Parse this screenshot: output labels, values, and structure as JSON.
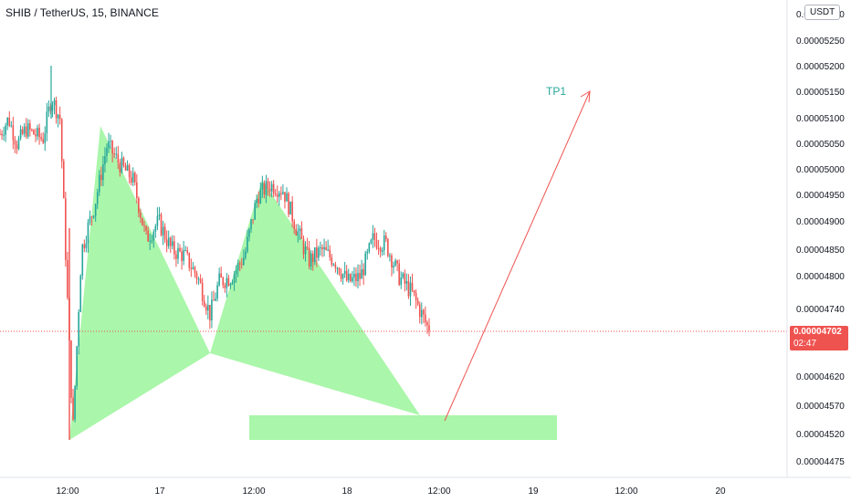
{
  "header": {
    "title": "SHIB / TetherUS, 15, BINANCE",
    "currency": "USDT"
  },
  "price_tag": {
    "price": "0.00004702",
    "countdown": "02:47"
  },
  "colors": {
    "up": "#26a69a",
    "down": "#ef5350",
    "pattern": "#a5f5a5",
    "arrow": "#ef5350",
    "target_label": "#26a69a"
  },
  "chart_data": {
    "type": "candlestick",
    "symbol": "SHIB / TetherUS",
    "interval": "15",
    "exchange": "BINANCE",
    "y_ticks": [
      "0.00005300",
      "0.00005250",
      "0.00005200",
      "0.00005150",
      "0.00005100",
      "0.00005050",
      "0.00005000",
      "0.00004950",
      "0.00004900",
      "0.00004850",
      "0.00004800",
      "0.00004740",
      "0.00004620",
      "0.00004570",
      "0.00004520",
      "0.00004475"
    ],
    "x_ticks": [
      "12:00",
      "17",
      "12:00",
      "18",
      "12:00",
      "19",
      "12:00",
      "20"
    ],
    "last_price": 4.702e-05,
    "price_path": [
      {
        "t": 0.0,
        "p": 5.07e-05
      },
      {
        "t": 0.02,
        "p": 5.1e-05
      },
      {
        "t": 0.04,
        "p": 5.05e-05
      },
      {
        "t": 0.06,
        "p": 5.08e-05
      },
      {
        "t": 0.1,
        "p": 5.06e-05
      },
      {
        "t": 0.12,
        "p": 5.14e-05
      },
      {
        "t": 0.14,
        "p": 5.1e-05
      },
      {
        "t": 0.16,
        "p": 4.7e-05
      },
      {
        "t": 0.17,
        "p": 4.53e-05
      },
      {
        "t": 0.19,
        "p": 4.85e-05
      },
      {
        "t": 0.22,
        "p": 4.93e-05
      },
      {
        "t": 0.25,
        "p": 5.05e-05
      },
      {
        "t": 0.28,
        "p": 5.01e-05
      },
      {
        "t": 0.31,
        "p": 4.98e-05
      },
      {
        "t": 0.34,
        "p": 4.87e-05
      },
      {
        "t": 0.37,
        "p": 4.9e-05
      },
      {
        "t": 0.4,
        "p": 4.85e-05
      },
      {
        "t": 0.43,
        "p": 4.84e-05
      },
      {
        "t": 0.46,
        "p": 4.8e-05
      },
      {
        "t": 0.49,
        "p": 4.73e-05
      },
      {
        "t": 0.51,
        "p": 4.79e-05
      },
      {
        "t": 0.54,
        "p": 4.8e-05
      },
      {
        "t": 0.57,
        "p": 4.84e-05
      },
      {
        "t": 0.6,
        "p": 4.95e-05
      },
      {
        "t": 0.63,
        "p": 4.97e-05
      },
      {
        "t": 0.66,
        "p": 4.96e-05
      },
      {
        "t": 0.69,
        "p": 4.89e-05
      },
      {
        "t": 0.72,
        "p": 4.83e-05
      },
      {
        "t": 0.75,
        "p": 4.85e-05
      },
      {
        "t": 0.78,
        "p": 4.83e-05
      },
      {
        "t": 0.81,
        "p": 4.79e-05
      },
      {
        "t": 0.84,
        "p": 4.8e-05
      },
      {
        "t": 0.87,
        "p": 4.87e-05
      },
      {
        "t": 0.9,
        "p": 4.86e-05
      },
      {
        "t": 0.93,
        "p": 4.8e-05
      },
      {
        "t": 0.96,
        "p": 4.77e-05
      },
      {
        "t": 1.0,
        "p": 4.702e-05
      }
    ],
    "annotations": {
      "target_label": "TP1",
      "pattern": "harmonic (XABCD) pattern",
      "target_zone": {
        "price_low": 4.52e-05,
        "price_high": 4.57e-05
      }
    }
  }
}
